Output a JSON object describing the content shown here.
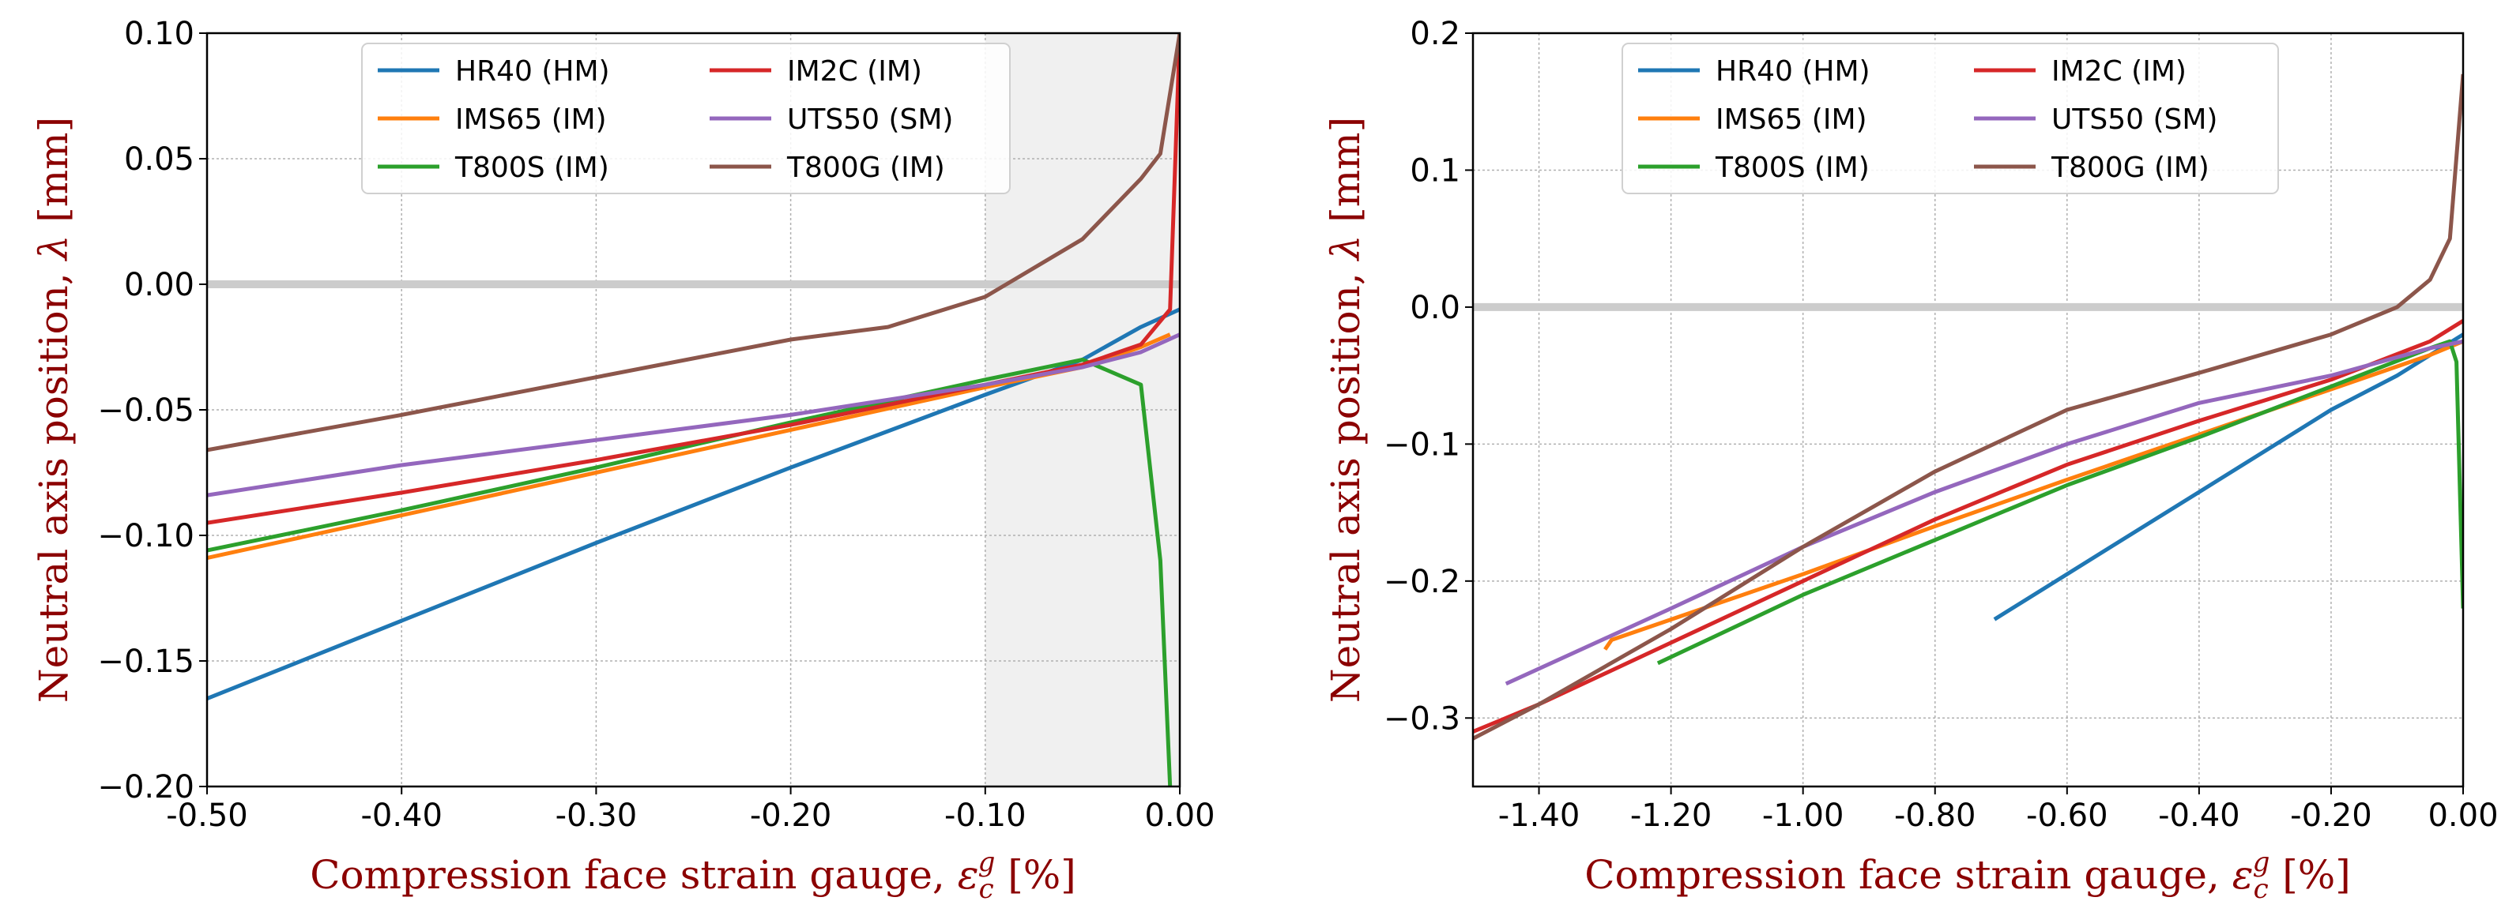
{
  "chart_data": [
    {
      "type": "line",
      "panel": "left",
      "xlabel_main": "Compression face strain gauge, ",
      "xlabel_symbol": "ε",
      "xlabel_sub": "c",
      "xlabel_sup": "g",
      "xlabel_unit": " [%]",
      "ylabel_main": "Neutral axis position, ",
      "ylabel_symbol": "λ",
      "ylabel_unit": " [mm]",
      "xlim": [
        -0.5,
        0.0
      ],
      "ylim": [
        -0.2,
        0.1
      ],
      "xticks": [
        -0.5,
        -0.4,
        -0.3,
        -0.2,
        -0.1,
        0.0
      ],
      "xtick_labels": [
        "-0.50",
        "-0.40",
        "-0.30",
        "-0.20",
        "-0.10",
        "0.00"
      ],
      "yticks": [
        -0.2,
        -0.15,
        -0.1,
        -0.05,
        0.0,
        0.05,
        0.1
      ],
      "ytick_labels": [
        "−0.20",
        "−0.15",
        "−0.10",
        "−0.05",
        "0.00",
        "0.05",
        "0.10"
      ],
      "shaded_region_x": [
        -0.1,
        0.0
      ],
      "reference_line_y": 0.0,
      "grid": true,
      "legend_position": "top-center",
      "series": [
        {
          "name": "HR40 (HM)",
          "color": "#1f77b4",
          "x": [
            -0.5,
            -0.4,
            -0.3,
            -0.2,
            -0.1,
            -0.05,
            -0.02,
            0.0
          ],
          "y": [
            -0.165,
            -0.134,
            -0.103,
            -0.073,
            -0.044,
            -0.03,
            -0.017,
            -0.01
          ]
        },
        {
          "name": "IMS65 (IM)",
          "color": "#ff7f0e",
          "x": [
            -0.5,
            -0.4,
            -0.3,
            -0.2,
            -0.1,
            -0.05,
            -0.02,
            -0.005
          ],
          "y": [
            -0.109,
            -0.092,
            -0.075,
            -0.058,
            -0.041,
            -0.033,
            -0.025,
            -0.02
          ]
        },
        {
          "name": "T800S (IM)",
          "color": "#2ca02c",
          "x": [
            -0.5,
            -0.4,
            -0.3,
            -0.2,
            -0.1,
            -0.05,
            -0.02,
            -0.01,
            -0.005
          ],
          "y": [
            -0.106,
            -0.09,
            -0.073,
            -0.055,
            -0.038,
            -0.03,
            -0.04,
            -0.11,
            -0.2
          ]
        },
        {
          "name": "IM2C (IM)",
          "color": "#d62728",
          "x": [
            -0.5,
            -0.4,
            -0.3,
            -0.2,
            -0.1,
            -0.05,
            -0.02,
            -0.005,
            0.0
          ],
          "y": [
            -0.095,
            -0.083,
            -0.07,
            -0.056,
            -0.04,
            -0.032,
            -0.024,
            -0.01,
            0.1
          ]
        },
        {
          "name": "UTS50 (SM)",
          "color": "#9467bd",
          "x": [
            -0.5,
            -0.4,
            -0.3,
            -0.2,
            -0.1,
            -0.05,
            -0.02,
            0.0
          ],
          "y": [
            -0.084,
            -0.072,
            -0.062,
            -0.052,
            -0.04,
            -0.033,
            -0.027,
            -0.02
          ]
        },
        {
          "name": "T800G (IM)",
          "color": "#8c564b",
          "x": [
            -0.5,
            -0.4,
            -0.3,
            -0.2,
            -0.15,
            -0.1,
            -0.05,
            -0.02,
            -0.01,
            0.0
          ],
          "y": [
            -0.066,
            -0.052,
            -0.037,
            -0.022,
            -0.017,
            -0.005,
            0.018,
            0.042,
            0.052,
            0.1
          ]
        }
      ]
    },
    {
      "type": "line",
      "panel": "right",
      "xlabel_main": "Compression face strain gauge, ",
      "xlabel_symbol": "ε",
      "xlabel_sub": "c",
      "xlabel_sup": "g",
      "xlabel_unit": " [%]",
      "ylabel_main": "Neutral axis position, ",
      "ylabel_symbol": "λ",
      "ylabel_unit": " [mm]",
      "xlim": [
        -1.5,
        0.0
      ],
      "ylim": [
        -0.35,
        0.2
      ],
      "xticks": [
        -1.4,
        -1.2,
        -1.0,
        -0.8,
        -0.6,
        -0.4,
        -0.2,
        0.0
      ],
      "xtick_labels": [
        "-1.40",
        "-1.20",
        "-1.00",
        "-0.80",
        "-0.60",
        "-0.40",
        "-0.20",
        "0.00"
      ],
      "yticks": [
        -0.3,
        -0.2,
        -0.1,
        0.0,
        0.1,
        0.2
      ],
      "ytick_labels": [
        "−0.3",
        "−0.2",
        "−0.1",
        "0.0",
        "0.1",
        "0.2"
      ],
      "reference_line_y": 0.0,
      "grid": true,
      "legend_position": "top-center",
      "series": [
        {
          "name": "HR40 (HM)",
          "color": "#1f77b4",
          "x": [
            -0.71,
            -0.6,
            -0.4,
            -0.2,
            -0.1,
            -0.05,
            0.0
          ],
          "y": [
            -0.228,
            -0.195,
            -0.135,
            -0.075,
            -0.05,
            -0.035,
            -0.02
          ]
        },
        {
          "name": "IMS65 (IM)",
          "color": "#ff7f0e",
          "x": [
            -1.3,
            -1.29,
            -1.0,
            -0.8,
            -0.6,
            -0.4,
            -0.2,
            -0.05,
            0.0
          ],
          "y": [
            -0.25,
            -0.243,
            -0.195,
            -0.16,
            -0.126,
            -0.093,
            -0.06,
            -0.035,
            -0.025
          ]
        },
        {
          "name": "T800S (IM)",
          "color": "#2ca02c",
          "x": [
            -1.22,
            -1.0,
            -0.8,
            -0.6,
            -0.4,
            -0.2,
            -0.05,
            -0.02,
            -0.01,
            0.0
          ],
          "y": [
            -0.26,
            -0.21,
            -0.17,
            -0.13,
            -0.095,
            -0.058,
            -0.03,
            -0.025,
            -0.04,
            -0.22
          ]
        },
        {
          "name": "IM2C (IM)",
          "color": "#d62728",
          "x": [
            -1.5,
            -1.4,
            -1.2,
            -1.0,
            -0.8,
            -0.6,
            -0.4,
            -0.2,
            -0.05,
            0.0
          ],
          "y": [
            -0.31,
            -0.29,
            -0.245,
            -0.2,
            -0.155,
            -0.115,
            -0.083,
            -0.053,
            -0.025,
            -0.01
          ]
        },
        {
          "name": "UTS50 (SM)",
          "color": "#9467bd",
          "x": [
            -1.45,
            -1.2,
            -1.0,
            -0.8,
            -0.6,
            -0.4,
            -0.2,
            -0.05,
            0.0
          ],
          "y": [
            -0.275,
            -0.22,
            -0.175,
            -0.135,
            -0.1,
            -0.07,
            -0.05,
            -0.03,
            -0.025
          ]
        },
        {
          "name": "T800G (IM)",
          "color": "#8c564b",
          "x": [
            -1.5,
            -1.4,
            -1.2,
            -1.0,
            -0.8,
            -0.6,
            -0.4,
            -0.2,
            -0.1,
            -0.05,
            -0.02,
            0.0
          ],
          "y": [
            -0.315,
            -0.29,
            -0.235,
            -0.175,
            -0.12,
            -0.075,
            -0.048,
            -0.02,
            0.0,
            0.02,
            0.05,
            0.17
          ]
        }
      ]
    }
  ]
}
